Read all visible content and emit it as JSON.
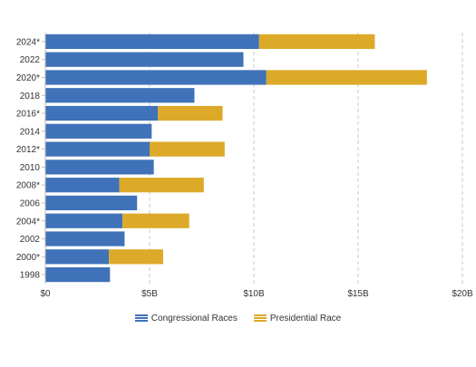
{
  "chart_data": {
    "type": "bar",
    "orientation": "horizontal",
    "stacked": true,
    "categories": [
      "2024*",
      "2022",
      "2020*",
      "2018",
      "2016*",
      "2014",
      "2012*",
      "2010",
      "2008*",
      "2006",
      "2004*",
      "2002",
      "2000*",
      "1998"
    ],
    "series": [
      {
        "name": "Congressional Races",
        "color": "#3f72b9",
        "values": [
          10.25,
          9.5,
          10.6,
          7.15,
          5.4,
          5.1,
          5.0,
          5.2,
          3.55,
          4.4,
          3.7,
          3.8,
          3.05,
          3.1
        ]
      },
      {
        "name": "Presidential Race",
        "color": "#dcaa28",
        "values": [
          5.55,
          0,
          7.7,
          0,
          3.1,
          0,
          3.6,
          0,
          4.05,
          0,
          3.2,
          0,
          2.6,
          0
        ]
      }
    ],
    "xlim": [
      0,
      20
    ],
    "x_ticks": [
      0,
      5,
      10,
      15,
      20
    ],
    "x_tick_labels": [
      "$0",
      "$5B",
      "$10B",
      "$15B",
      "$20B"
    ],
    "grid": "vertical dashed",
    "legend_position": "bottom",
    "title": "",
    "xlabel": "",
    "ylabel": ""
  },
  "legend": {
    "items": [
      {
        "label": "Congressional Races",
        "color": "#3f72b9"
      },
      {
        "label": "Presidential Race",
        "color": "#dcaa28"
      }
    ]
  }
}
